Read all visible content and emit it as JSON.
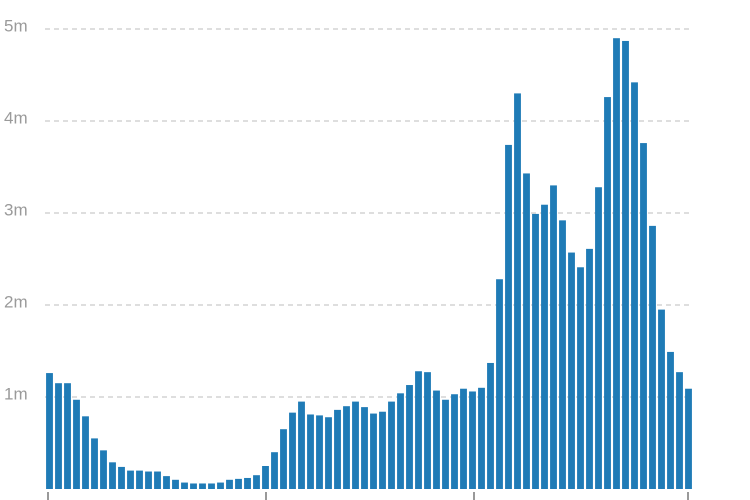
{
  "chart_data": {
    "type": "bar",
    "categories": [
      null,
      null,
      null,
      null,
      null,
      null,
      null,
      null,
      null,
      null,
      null,
      null,
      null,
      null,
      null,
      null,
      null,
      null,
      null,
      null,
      null,
      null,
      null,
      null,
      null,
      null,
      null,
      null,
      null,
      null,
      null,
      null,
      null,
      null,
      null,
      null,
      null,
      null,
      null,
      null,
      null,
      null,
      null,
      null,
      null,
      null,
      null,
      null,
      null,
      null,
      null,
      null,
      null,
      null,
      null,
      null,
      null,
      null,
      null,
      null,
      null,
      null,
      null,
      null,
      null,
      null,
      null,
      null,
      null,
      null,
      null,
      null
    ],
    "values": [
      1.26,
      1.15,
      1.15,
      0.97,
      0.79,
      0.55,
      0.42,
      0.29,
      0.24,
      0.2,
      0.2,
      0.19,
      0.19,
      0.14,
      0.1,
      0.07,
      0.06,
      0.06,
      0.06,
      0.07,
      0.1,
      0.11,
      0.12,
      0.15,
      0.25,
      0.4,
      0.65,
      0.83,
      0.95,
      0.81,
      0.8,
      0.78,
      0.86,
      0.9,
      0.95,
      0.89,
      0.82,
      0.84,
      0.95,
      1.04,
      1.13,
      1.28,
      1.27,
      1.07,
      0.97,
      1.03,
      1.09,
      1.06,
      1.1,
      1.37,
      2.28,
      3.74,
      4.3,
      3.43,
      2.99,
      3.09,
      3.3,
      2.92,
      2.57,
      2.41,
      2.61,
      3.28,
      4.26,
      4.9,
      4.87,
      4.42,
      3.76,
      2.86,
      1.95,
      1.49,
      1.27,
      1.09
    ],
    "color": "#1f7bb6",
    "ylim": [
      0,
      5.3
    ],
    "yticks": [
      {
        "value": 1,
        "label": "1m"
      },
      {
        "value": 2,
        "label": "2m"
      },
      {
        "value": 3,
        "label": "3m"
      },
      {
        "value": 4,
        "label": "4m"
      },
      {
        "value": 5,
        "label": "5m"
      }
    ],
    "grid": true
  }
}
